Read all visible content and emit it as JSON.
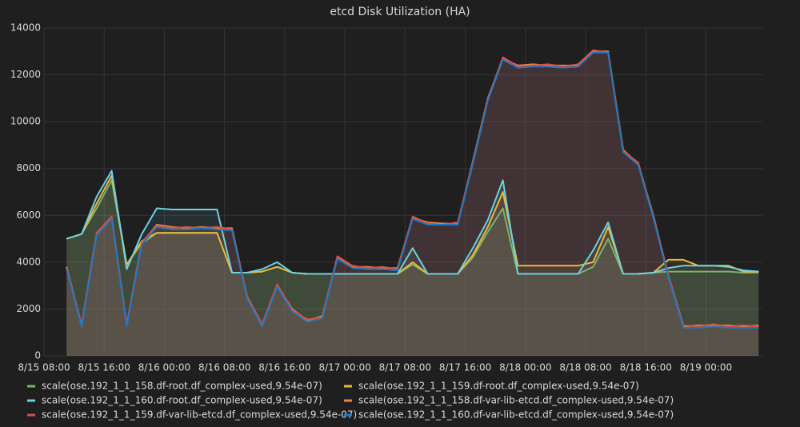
{
  "chart_data": {
    "type": "line",
    "title": "etcd Disk Utilization (HA)",
    "x": [
      "8/15 11:00",
      "8/15 13:00",
      "8/15 15:00",
      "8/15 17:00",
      "8/15 19:00",
      "8/15 21:00",
      "8/15 23:00",
      "8/16 01:00",
      "8/16 03:00",
      "8/16 05:00",
      "8/16 07:00",
      "8/16 09:00",
      "8/16 11:00",
      "8/16 13:00",
      "8/16 15:00",
      "8/16 17:00",
      "8/16 19:00",
      "8/16 21:00",
      "8/16 23:00",
      "8/17 01:00",
      "8/17 03:00",
      "8/17 05:00",
      "8/17 07:00",
      "8/17 09:00",
      "8/17 11:00",
      "8/17 13:00",
      "8/17 15:00",
      "8/17 17:00",
      "8/17 19:00",
      "8/17 21:00",
      "8/17 23:00",
      "8/18 01:00",
      "8/18 03:00",
      "8/18 05:00",
      "8/18 07:00",
      "8/18 09:00",
      "8/18 11:00",
      "8/18 13:00",
      "8/18 15:00",
      "8/18 17:00",
      "8/18 19:00",
      "8/18 21:00",
      "8/18 23:00",
      "8/19 01:00",
      "8/19 03:00",
      "8/19 05:00",
      "8/19 07:00"
    ],
    "xlim": [
      "8/15 08:00",
      "8/19 07:30"
    ],
    "xticks": [
      "8/15 08:00",
      "8/15 16:00",
      "8/16 00:00",
      "8/16 08:00",
      "8/16 16:00",
      "8/17 00:00",
      "8/17 08:00",
      "8/17 16:00",
      "8/18 00:00",
      "8/18 08:00",
      "8/18 16:00",
      "8/19 00:00"
    ],
    "ylim": [
      0,
      14000
    ],
    "yticks": [
      0,
      2000,
      4000,
      6000,
      8000,
      10000,
      12000,
      14000
    ],
    "grid": true,
    "series": [
      {
        "name": "scale(ose.192_1_1_158.df-root.df_complex-used,9.54e-07)",
        "color": "#7eb26d",
        "values": [
          5000,
          5200,
          6300,
          7500,
          3900,
          4800,
          5250,
          5250,
          5250,
          5250,
          5250,
          3550,
          3550,
          3600,
          3800,
          3550,
          3500,
          3500,
          3500,
          3500,
          3500,
          3500,
          3500,
          3900,
          3500,
          3500,
          3500,
          4200,
          5300,
          6300,
          3500,
          3500,
          3500,
          3500,
          3500,
          3800,
          5000,
          3500,
          3500,
          3550,
          3600,
          3600,
          3600,
          3600,
          3600,
          3550,
          3550
        ]
      },
      {
        "name": "scale(ose.192_1_1_159.df-root.df_complex-used,9.54e-07)",
        "color": "#eab839",
        "values": [
          5000,
          5200,
          6500,
          7700,
          3900,
          4900,
          5250,
          5250,
          5250,
          5250,
          5250,
          3550,
          3550,
          3600,
          3800,
          3550,
          3500,
          3500,
          3500,
          3500,
          3500,
          3500,
          3500,
          4000,
          3500,
          3500,
          3500,
          4300,
          5500,
          7000,
          3850,
          3850,
          3850,
          3850,
          3850,
          4000,
          5500,
          3500,
          3500,
          3550,
          4100,
          4100,
          3850,
          3850,
          3850,
          3600,
          3600
        ]
      },
      {
        "name": "scale(ose.192_1_1_160.df-root.df_complex-used,9.54e-07)",
        "color": "#6ed0e0",
        "values": [
          5000,
          5200,
          6800,
          7900,
          3700,
          5200,
          6300,
          6250,
          6250,
          6250,
          6250,
          3550,
          3550,
          3700,
          4000,
          3550,
          3500,
          3500,
          3500,
          3500,
          3500,
          3500,
          3500,
          4600,
          3500,
          3500,
          3500,
          4600,
          5800,
          7500,
          3500,
          3500,
          3500,
          3500,
          3500,
          4500,
          5700,
          3500,
          3500,
          3550,
          3750,
          3850,
          3850,
          3850,
          3800,
          3650,
          3600
        ]
      },
      {
        "name": "scale(ose.192_1_1_158.df-var-lib-etcd.df_complex-used,9.54e-07)",
        "color": "#ef843c",
        "values": [
          3800,
          1300,
          5200,
          5900,
          1300,
          4800,
          5600,
          5500,
          5450,
          5500,
          5450,
          5450,
          2500,
          1300,
          3000,
          2000,
          1500,
          1700,
          4200,
          3800,
          3800,
          3750,
          3750,
          5900,
          5700,
          5650,
          5650,
          8300,
          11000,
          12700,
          12400,
          12450,
          12400,
          12400,
          12400,
          13000,
          13000,
          8800,
          8200,
          6000,
          3400,
          1250,
          1300,
          1300,
          1300,
          1250,
          1300
        ]
      },
      {
        "name": "scale(ose.192_1_1_159.df-var-lib-etcd.df_complex-used,9.54e-07)",
        "color": "#e24d42",
        "values": [
          3750,
          1350,
          5250,
          5950,
          1350,
          4850,
          5550,
          5450,
          5500,
          5450,
          5500,
          5400,
          2550,
          1350,
          3050,
          1950,
          1550,
          1650,
          4250,
          3850,
          3750,
          3800,
          3700,
          5950,
          5650,
          5600,
          5700,
          8250,
          10950,
          12750,
          12350,
          12400,
          12450,
          12350,
          12450,
          13050,
          12950,
          8750,
          8250,
          5950,
          3450,
          1300,
          1250,
          1350,
          1250,
          1300,
          1250
        ]
      },
      {
        "name": "scale(ose.192_1_1_160.df-var-lib-etcd.df_complex-used,9.54e-07)",
        "color": "#1f78c1",
        "values": [
          3700,
          1250,
          5150,
          5850,
          1250,
          4750,
          5500,
          5400,
          5400,
          5450,
          5400,
          5350,
          2450,
          1250,
          2950,
          1900,
          1450,
          1600,
          4150,
          3750,
          3700,
          3700,
          3650,
          5850,
          5600,
          5600,
          5600,
          8200,
          10900,
          12650,
          12300,
          12350,
          12350,
          12300,
          12350,
          12950,
          12950,
          8700,
          8150,
          5900,
          3350,
          1200,
          1200,
          1250,
          1200,
          1200,
          1200
        ]
      }
    ]
  }
}
